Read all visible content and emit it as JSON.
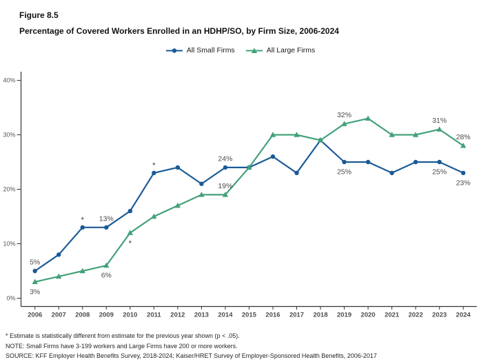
{
  "figure_label": "Figure 8.5",
  "title": "Percentage of Covered Workers Enrolled in an HDHP/SO, by Firm Size, 2006-2024",
  "footnotes": {
    "asterisk_note": "* Estimate is statistically different from estimate for the previous year shown (p < .05).",
    "note": "NOTE: Small Firms have 3-199 workers and Large Firms have 200 or more workers.",
    "source": "SOURCE: KFF Employer Health Benefits Survey, 2018-2024; Kaiser/HRET Survey of Employer-Sponsored Health Benefits, 2006-2017"
  },
  "chart_data": {
    "type": "line",
    "title": "Percentage of Covered Workers Enrolled in an HDHP/SO, by Firm Size, 2006-2024",
    "x": [
      2006,
      2007,
      2008,
      2009,
      2010,
      2011,
      2012,
      2013,
      2014,
      2015,
      2016,
      2017,
      2018,
      2019,
      2020,
      2021,
      2022,
      2023,
      2024
    ],
    "xlabel": "",
    "ylabel": "",
    "ylim": [
      0,
      42
    ],
    "y_ticks": [
      0,
      10,
      20,
      30,
      40
    ],
    "y_tick_suffix": "%",
    "grid": false,
    "legend_position": "top-center",
    "axis_color": "#333333",
    "series": [
      {
        "id": "small-firms",
        "name": "All Small Firms",
        "color": "#1a5a96",
        "marker": "circle",
        "values": [
          5,
          8,
          13,
          13,
          16,
          23,
          24,
          21,
          24,
          24,
          26,
          23,
          29,
          25,
          25,
          23,
          25,
          25,
          23
        ],
        "point_labels": [
          {
            "year": 2006,
            "text": "5%",
            "pos": "above"
          },
          {
            "year": 2009,
            "text": "13%",
            "pos": "above"
          },
          {
            "year": 2014,
            "text": "24%",
            "pos": "above"
          },
          {
            "year": 2019,
            "text": "25%",
            "pos": "below"
          },
          {
            "year": 2023,
            "text": "25%",
            "pos": "below"
          },
          {
            "year": 2024,
            "text": "23%",
            "pos": "below"
          }
        ],
        "asterisks": [
          {
            "year": 2008,
            "pos": "above"
          },
          {
            "year": 2011,
            "pos": "above"
          }
        ]
      },
      {
        "id": "large-firms",
        "name": "All Large Firms",
        "color": "#43a17a",
        "marker": "triangle",
        "values": [
          3,
          4,
          5,
          6,
          12,
          15,
          17,
          19,
          19,
          24,
          30,
          30,
          29,
          32,
          33,
          30,
          30,
          31,
          28
        ],
        "point_labels": [
          {
            "year": 2006,
            "text": "3%",
            "pos": "below"
          },
          {
            "year": 2009,
            "text": "6%",
            "pos": "below"
          },
          {
            "year": 2014,
            "text": "19%",
            "pos": "above"
          },
          {
            "year": 2019,
            "text": "32%",
            "pos": "above"
          },
          {
            "year": 2023,
            "text": "31%",
            "pos": "above"
          },
          {
            "year": 2024,
            "text": "28%",
            "pos": "above"
          }
        ],
        "asterisks": [
          {
            "year": 2010,
            "pos": "below"
          }
        ]
      }
    ]
  }
}
